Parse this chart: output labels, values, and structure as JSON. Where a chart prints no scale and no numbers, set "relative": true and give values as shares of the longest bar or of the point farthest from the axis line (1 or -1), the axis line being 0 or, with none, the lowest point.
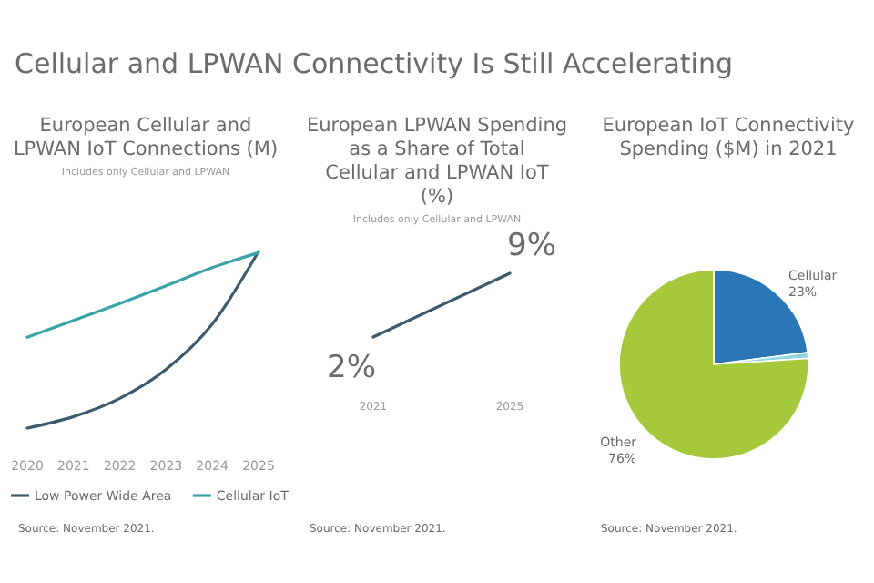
{
  "chart_data": [
    {
      "type": "other",
      "title": "Cellular and LPWAN Connectivity Is Still Accelerating"
    },
    {
      "type": "line",
      "title": "European Cellular and LPWAN IoT Connections (M)",
      "subtitle": "Includes only Cellular and LPWAN",
      "categories": [
        "2020",
        "2021",
        "2022",
        "2023",
        "2024",
        "2025"
      ],
      "relative": true,
      "legend": "bottom",
      "marker": "none",
      "series": [
        {
          "name": "Low Power Wide Area",
          "color": "#3d5a6c",
          "values": [
            0,
            0.065,
            0.168,
            0.332,
            0.589,
            1
          ]
        },
        {
          "name": "Cellular IoT",
          "color": "#3aa3a8",
          "values": [
            0.514,
            0.61,
            0.705,
            0.805,
            0.908,
            0.993
          ]
        }
      ],
      "annotations": [
        "Source: November 2021."
      ]
    },
    {
      "type": "line",
      "title": "European LPWAN Spending as a Share of Total Cellular and LPWAN IoT (%)",
      "subtitle": "Includes only Cellular and LPWAN",
      "categories": [
        "2021",
        "2025"
      ],
      "marker": "none",
      "series": [
        {
          "color": "#3d5a6c",
          "values": [
            2,
            9
          ],
          "value_labels": [
            "2%",
            "9%"
          ]
        }
      ],
      "annotations": [
        "Source: November 2021."
      ]
    },
    {
      "type": "pie",
      "title": "European IoT Connectivity Spending ($M) in 2021",
      "categories": [
        "Cellular",
        null,
        "Other"
      ],
      "values": [
        23,
        1,
        76
      ],
      "value_labels": [
        "23%",
        null,
        "76%"
      ],
      "colors": [
        "#2b77b5",
        "#8fd6e6",
        "#a6c83b"
      ],
      "annotations": [
        "Source: November 2021."
      ]
    }
  ]
}
